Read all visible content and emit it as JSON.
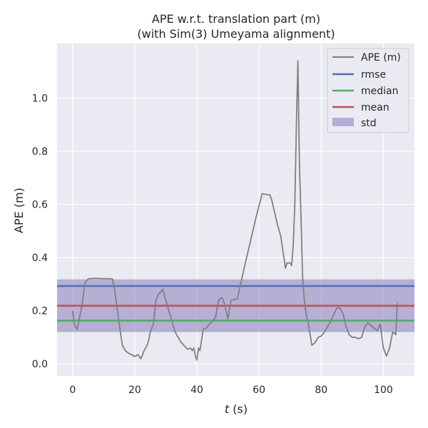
{
  "chart_data": {
    "type": "line",
    "title_line1": "APE w.r.t. translation part (m)",
    "title_line2": "(with Sim(3) Umeyama alignment)",
    "xlabel_var": "t",
    "xlabel_unit": " (s)",
    "ylabel": "APE (m)",
    "xlim": [
      -5,
      110
    ],
    "ylim": [
      -0.045,
      1.205
    ],
    "xticks": [
      0,
      20,
      40,
      60,
      80,
      100
    ],
    "yticks": [
      0.0,
      0.2,
      0.4,
      0.6,
      0.8,
      1.0
    ],
    "xtick_labels": [
      "0",
      "20",
      "40",
      "60",
      "80",
      "100"
    ],
    "ytick_labels": [
      "0.0",
      "0.2",
      "0.4",
      "0.6",
      "0.8",
      "1.0"
    ],
    "grid": true,
    "legend_position": "top-right",
    "colors": {
      "background": "#eaeaf2",
      "grid": "#ffffff",
      "ape": "#808080",
      "rmse": "#4c72b0",
      "median": "#55a868",
      "mean": "#c44e52",
      "std": "#8172b3"
    },
    "stats": {
      "rmse": 0.293,
      "median": 0.163,
      "mean": 0.219,
      "std_low": 0.12,
      "std_high": 0.318
    },
    "legend": {
      "ape": "APE (m)",
      "rmse": "rmse",
      "median": "median",
      "mean": "mean",
      "std": "std"
    },
    "series": [
      {
        "name": "APE (m)",
        "x": [
          0,
          0.5,
          1.5,
          3,
          4,
          5,
          7,
          10,
          12.8,
          13.5,
          15,
          16,
          17,
          18,
          19,
          20,
          21,
          22,
          23,
          24,
          24.5,
          25,
          26,
          26.8,
          27.5,
          29,
          31,
          33,
          35,
          37,
          38,
          38.5,
          39,
          39.5,
          40,
          40.5,
          41,
          41.5,
          42,
          43,
          44,
          45,
          46,
          47,
          48,
          48.5,
          49,
          50,
          51,
          53,
          55,
          57,
          59,
          61,
          62,
          63.5,
          64,
          65,
          66,
          66.5,
          67,
          67.5,
          68,
          68.5,
          69,
          70,
          70.5,
          71,
          71.5,
          72,
          72.5,
          73,
          73.5,
          74,
          74.5,
          75,
          76,
          77,
          78,
          79,
          80,
          81,
          83,
          85,
          86,
          87,
          88,
          89,
          90,
          91,
          92,
          93,
          94,
          95,
          96,
          97,
          98,
          99,
          100,
          101,
          102,
          103,
          104,
          104.5
        ],
        "y": [
          0.2,
          0.15,
          0.13,
          0.22,
          0.305,
          0.32,
          0.322,
          0.321,
          0.32,
          0.28,
          0.15,
          0.07,
          0.05,
          0.04,
          0.035,
          0.028,
          0.035,
          0.02,
          0.05,
          0.07,
          0.09,
          0.12,
          0.15,
          0.24,
          0.26,
          0.28,
          0.2,
          0.12,
          0.08,
          0.055,
          0.06,
          0.05,
          0.06,
          0.03,
          0.015,
          0.06,
          0.05,
          0.09,
          0.13,
          0.135,
          0.15,
          0.16,
          0.175,
          0.24,
          0.25,
          0.24,
          0.22,
          0.17,
          0.24,
          0.245,
          0.35,
          0.45,
          0.55,
          0.64,
          0.638,
          0.635,
          0.62,
          0.57,
          0.52,
          0.5,
          0.48,
          0.44,
          0.4,
          0.36,
          0.38,
          0.38,
          0.37,
          0.45,
          0.6,
          0.9,
          1.14,
          0.75,
          0.55,
          0.33,
          0.25,
          0.2,
          0.14,
          0.07,
          0.08,
          0.1,
          0.105,
          0.12,
          0.16,
          0.21,
          0.21,
          0.19,
          0.14,
          0.11,
          0.1,
          0.1,
          0.095,
          0.1,
          0.14,
          0.155,
          0.145,
          0.135,
          0.125,
          0.15,
          0.06,
          0.03,
          0.06,
          0.12,
          0.11,
          0.23
        ]
      }
    ]
  }
}
